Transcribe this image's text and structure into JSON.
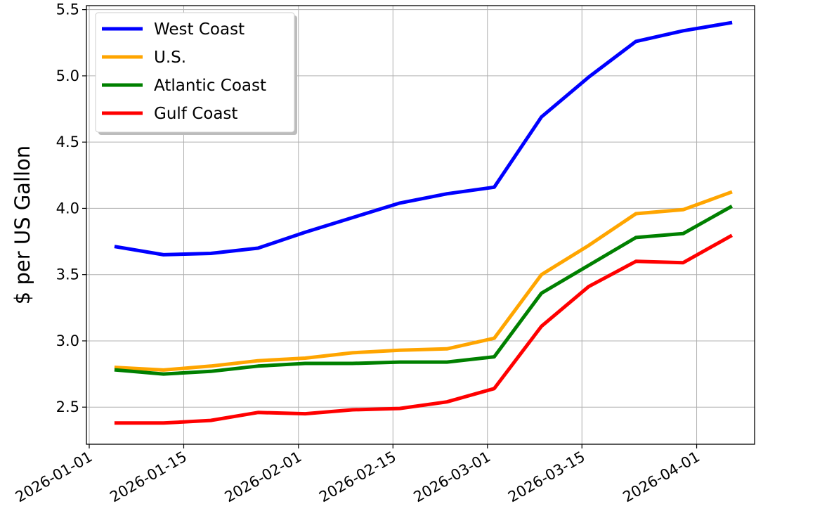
{
  "chart_data": {
    "type": "line",
    "title": "",
    "xlabel": "",
    "ylabel": "$ per US Gallon",
    "xlim": [
      "2026-01-01",
      "2026-04-10"
    ],
    "ylim": [
      2.22,
      5.53
    ],
    "grid": true,
    "legend_position": "top-left",
    "x_ticks": [
      "2026-01-01",
      "2026-01-15",
      "2026-02-01",
      "2026-02-15",
      "2026-03-01",
      "2026-03-15",
      "2026-04-01"
    ],
    "y_ticks": [
      "2.5",
      "3.0",
      "3.5",
      "4.0",
      "4.5",
      "5.0",
      "5.5"
    ],
    "x": [
      "2026-01-05",
      "2026-01-12",
      "2026-01-19",
      "2026-01-26",
      "2026-02-02",
      "2026-02-09",
      "2026-02-16",
      "2026-02-23",
      "2026-03-02",
      "2026-03-09",
      "2026-03-16",
      "2026-03-23",
      "2026-03-30",
      "2026-04-06"
    ],
    "series": [
      {
        "name": "West Coast",
        "color": "#0000ff",
        "values": [
          3.71,
          3.65,
          3.66,
          3.7,
          3.82,
          3.93,
          4.04,
          4.11,
          4.16,
          4.69,
          4.99,
          5.26,
          5.34,
          5.4
        ]
      },
      {
        "name": "U.S.",
        "color": "#ffa500",
        "values": [
          2.8,
          2.78,
          2.81,
          2.85,
          2.87,
          2.91,
          2.93,
          2.94,
          3.02,
          3.5,
          3.72,
          3.96,
          3.99,
          4.12
        ]
      },
      {
        "name": "Atlantic Coast",
        "color": "#008000",
        "values": [
          2.78,
          2.75,
          2.77,
          2.81,
          2.83,
          2.83,
          2.84,
          2.84,
          2.88,
          3.36,
          3.57,
          3.78,
          3.81,
          4.01
        ]
      },
      {
        "name": "Gulf Coast",
        "color": "#ff0000",
        "values": [
          2.38,
          2.38,
          2.4,
          2.46,
          2.45,
          2.48,
          2.49,
          2.54,
          2.64,
          3.11,
          3.41,
          3.6,
          3.59,
          3.79
        ]
      }
    ]
  }
}
